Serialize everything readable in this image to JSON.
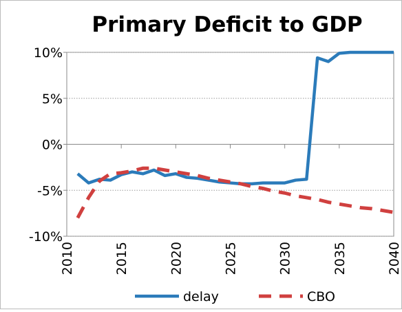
{
  "chart_data": {
    "type": "line",
    "title": "Primary Deficit to GDP",
    "x": [
      2011,
      2012,
      2013,
      2014,
      2015,
      2016,
      2017,
      2018,
      2019,
      2020,
      2021,
      2022,
      2023,
      2024,
      2025,
      2026,
      2027,
      2028,
      2029,
      2030,
      2031,
      2032,
      2033,
      2034,
      2035,
      2036,
      2037,
      2038,
      2039,
      2040
    ],
    "series": [
      {
        "name": "delay",
        "color": "#2b7bba",
        "dash": false,
        "values": [
          -3.2,
          -4.2,
          -3.8,
          -3.9,
          -3.3,
          -3.0,
          -3.2,
          -2.8,
          -3.4,
          -3.2,
          -3.6,
          -3.7,
          -3.9,
          -4.1,
          -4.2,
          -4.3,
          -4.3,
          -4.2,
          -4.2,
          -4.2,
          -3.9,
          -3.8,
          9.4,
          9.0,
          9.9,
          10,
          10,
          10,
          10,
          10
        ]
      },
      {
        "name": "CBO",
        "color": "#d0403f",
        "dash": true,
        "values": [
          -8.0,
          -5.8,
          -4.0,
          -3.2,
          -3.1,
          -2.9,
          -2.6,
          -2.6,
          -2.8,
          -3.0,
          -3.2,
          -3.4,
          -3.7,
          -3.9,
          -4.1,
          -4.3,
          -4.6,
          -4.8,
          -5.1,
          -5.3,
          -5.6,
          -5.8,
          -6.0,
          -6.3,
          -6.5,
          -6.7,
          -6.9,
          -7.0,
          -7.2,
          -7.4
        ]
      }
    ],
    "xlim": [
      2010,
      2040
    ],
    "xticks": [
      2010,
      2015,
      2020,
      2025,
      2030,
      2035,
      2040
    ],
    "ylim": [
      -10,
      10
    ],
    "yticks": [
      {
        "value": -10,
        "label": "-10%"
      },
      {
        "value": -5,
        "label": "-5%"
      },
      {
        "value": 0,
        "label": "0%"
      },
      {
        "value": 5,
        "label": "5%"
      },
      {
        "value": 10,
        "label": "10%"
      }
    ],
    "grid": true,
    "legend": "bottom"
  }
}
